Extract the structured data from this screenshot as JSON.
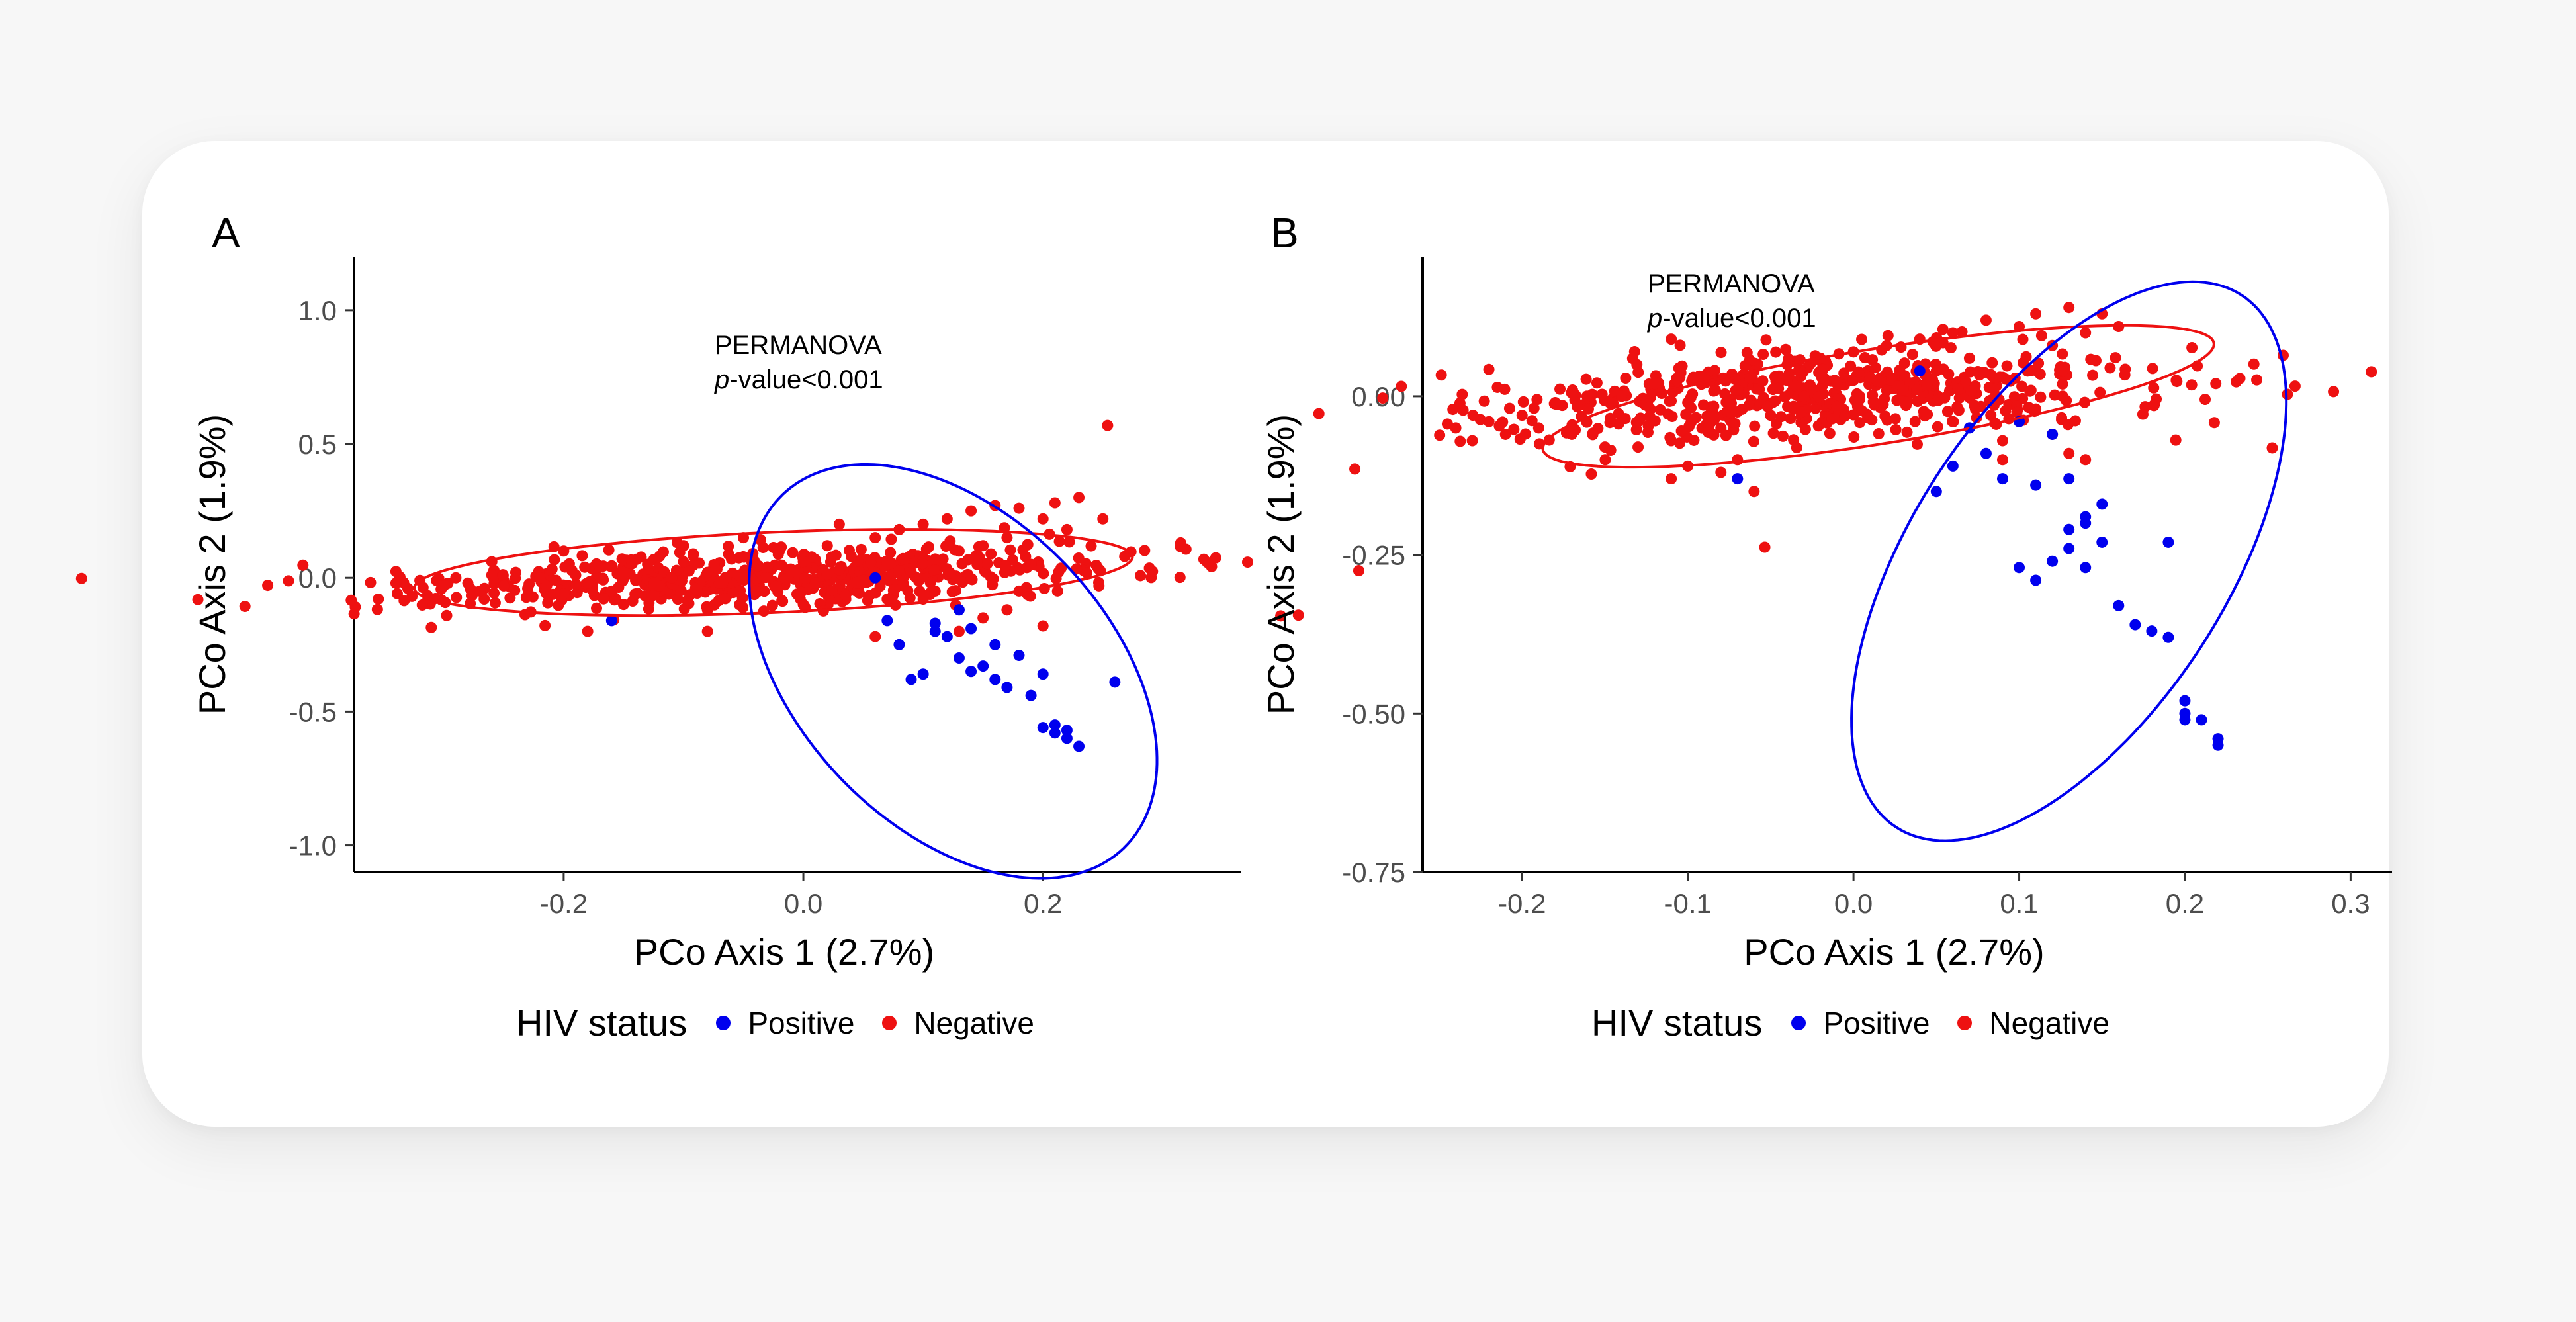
{
  "colors": {
    "positive": "#0000ee",
    "negative": "#ee1111"
  },
  "legend": {
    "title": "HIV status",
    "items": [
      {
        "label": "Positive",
        "color": "#0000ee"
      },
      {
        "label": "Negative",
        "color": "#ee1111"
      }
    ]
  },
  "annotation": {
    "line1": "PERMANOVA",
    "p_italic": "p",
    "p_rest": "-value<0.001"
  },
  "chart_data": [
    {
      "panel": "A",
      "type": "scatter",
      "xlabel": "PCo Axis 1 (2.7%)",
      "ylabel": "PCo Axis 2 (1.9%)",
      "xlim": [
        -0.375,
        0.365
      ],
      "ylim": [
        -1.1,
        1.2
      ],
      "xticks": [
        -0.2,
        0.0,
        0.2
      ],
      "xtick_labels": [
        "-0.2",
        "0.0",
        "0.2"
      ],
      "yticks": [
        -1.0,
        -0.5,
        0.0,
        0.5,
        1.0
      ],
      "ytick_labels": [
        "-1.0",
        "-0.5",
        "0.0",
        "0.5",
        "1.0"
      ],
      "grid": false,
      "series": [
        {
          "name": "Negative",
          "color": "#ee1111",
          "points": [
            [
              -0.34,
              -0.02
            ],
            [
              -0.33,
              -0.04
            ],
            [
              -0.32,
              -0.01
            ],
            [
              -0.3,
              -0.03
            ],
            [
              -0.29,
              0.0
            ],
            [
              -0.28,
              -0.02
            ],
            [
              -0.27,
              -0.05
            ],
            [
              -0.26,
              0.01
            ],
            [
              -0.25,
              -0.03
            ],
            [
              -0.24,
              0.02
            ],
            [
              -0.23,
              -0.04
            ],
            [
              -0.22,
              0.0
            ],
            [
              -0.21,
              0.03
            ],
            [
              -0.2,
              -0.06
            ],
            [
              -0.19,
              0.01
            ],
            [
              -0.18,
              -0.02
            ],
            [
              -0.17,
              0.04
            ],
            [
              -0.16,
              -0.05
            ],
            [
              -0.15,
              0.02
            ],
            [
              -0.14,
              -0.01
            ],
            [
              -0.13,
              0.05
            ],
            [
              -0.12,
              -0.03
            ],
            [
              -0.11,
              0.0
            ],
            [
              -0.1,
              0.06
            ],
            [
              -0.09,
              -0.04
            ],
            [
              -0.08,
              0.02
            ],
            [
              -0.07,
              -0.02
            ],
            [
              -0.06,
              0.07
            ],
            [
              -0.05,
              0.0
            ],
            [
              -0.04,
              -0.05
            ],
            [
              -0.03,
              0.04
            ],
            [
              -0.02,
              0.1
            ],
            [
              -0.01,
              0.02
            ],
            [
              0.0,
              0.06
            ],
            [
              0.01,
              -0.02
            ],
            [
              0.02,
              0.12
            ],
            [
              0.03,
              0.03
            ],
            [
              0.04,
              0.08
            ],
            [
              0.05,
              -0.01
            ],
            [
              0.06,
              0.15
            ],
            [
              0.07,
              0.05
            ],
            [
              0.08,
              0.18
            ],
            [
              0.09,
              0.02
            ],
            [
              0.1,
              0.2
            ],
            [
              0.11,
              0.07
            ],
            [
              0.12,
              0.22
            ],
            [
              0.13,
              0.1
            ],
            [
              0.14,
              0.25
            ],
            [
              0.15,
              0.12
            ],
            [
              0.16,
              0.27
            ],
            [
              0.17,
              0.15
            ],
            [
              0.18,
              0.26
            ],
            [
              0.19,
              0.05
            ],
            [
              0.2,
              0.22
            ],
            [
              0.21,
              0.28
            ],
            [
              0.22,
              0.18
            ],
            [
              0.23,
              0.3
            ],
            [
              0.25,
              0.22
            ],
            [
              -0.2,
              0.1
            ],
            [
              -0.1,
              0.12
            ],
            [
              -0.05,
              0.15
            ],
            [
              0.03,
              0.2
            ],
            [
              -0.15,
              -0.1
            ],
            [
              -0.08,
              -0.12
            ],
            [
              -0.18,
              -0.2
            ],
            [
              -0.08,
              -0.2
            ],
            [
              0.0,
              -0.1
            ],
            [
              0.1,
              -0.08
            ],
            [
              0.15,
              -0.15
            ],
            [
              0.2,
              -0.18
            ],
            [
              0.06,
              -0.22
            ],
            [
              0.17,
              -0.12
            ],
            [
              0.13,
              -0.2
            ],
            [
              0.07,
              -0.08
            ],
            [
              0.18,
              -0.05
            ],
            [
              -0.26,
              0.06
            ],
            [
              -0.12,
              0.08
            ],
            [
              0.11,
              -0.05
            ]
          ],
          "center": [
            -0.03,
            0.0
          ],
          "n": 560,
          "spread": [
            0.14,
            0.055
          ],
          "tilt": 0.45
        },
        {
          "name": "Positive",
          "color": "#0000ee",
          "points": [
            [
              -0.16,
              -0.16
            ],
            [
              0.06,
              0.0
            ],
            [
              0.07,
              -0.16
            ],
            [
              0.08,
              -0.25
            ],
            [
              0.09,
              -0.38
            ],
            [
              0.1,
              -0.36
            ],
            [
              0.11,
              -0.2
            ],
            [
              0.12,
              -0.22
            ],
            [
              0.13,
              -0.3
            ],
            [
              0.14,
              -0.19
            ],
            [
              0.14,
              -0.35
            ],
            [
              0.15,
              -0.33
            ],
            [
              0.16,
              -0.25
            ],
            [
              0.16,
              -0.38
            ],
            [
              0.17,
              -0.41
            ],
            [
              0.18,
              -0.29
            ],
            [
              0.19,
              -0.44
            ],
            [
              0.2,
              -0.36
            ],
            [
              0.2,
              -0.56
            ],
            [
              0.21,
              -0.58
            ],
            [
              0.21,
              -0.55
            ],
            [
              0.22,
              -0.6
            ],
            [
              0.22,
              -0.57
            ],
            [
              0.23,
              -0.63
            ],
            [
              0.26,
              -0.39
            ],
            [
              0.13,
              -0.12
            ],
            [
              0.11,
              -0.17
            ]
          ]
        }
      ],
      "ellipses": [
        {
          "group": "Negative",
          "color": "#ee1111",
          "center": [
            -0.025,
            0.02
          ],
          "rx": 0.3,
          "ry": 0.15,
          "angle_deg": 2.5
        },
        {
          "group": "Positive",
          "color": "#0000ee",
          "center": [
            0.125,
            -0.35
          ],
          "rx": 0.205,
          "ry": 0.58,
          "angle_deg": -46
        }
      ]
    },
    {
      "panel": "B",
      "type": "scatter",
      "xlabel": "PCo Axis 1 (2.7%)",
      "ylabel": "PCo Axis 2 (1.9%)",
      "xlim": [
        -0.26,
        0.325
      ],
      "ylim": [
        -0.75,
        0.22
      ],
      "xticks": [
        -0.2,
        -0.1,
        0.0,
        0.1,
        0.2,
        0.3
      ],
      "xtick_labels": [
        "-0.2",
        "-0.1",
        "0.0",
        "0.1",
        "0.2",
        "0.3"
      ],
      "yticks": [
        -0.75,
        -0.5,
        -0.25,
        0.0
      ],
      "ytick_labels": [
        "-0.75",
        "-0.50",
        "-0.25",
        "0.00"
      ],
      "grid": false,
      "series": [
        {
          "name": "Negative",
          "color": "#ee1111",
          "points": [
            [
              -0.24,
              -0.05
            ],
            [
              -0.23,
              -0.07
            ],
            [
              -0.22,
              -0.04
            ],
            [
              -0.21,
              -0.06
            ],
            [
              -0.2,
              -0.03
            ],
            [
              -0.19,
              -0.05
            ],
            [
              -0.18,
              -0.01
            ],
            [
              -0.17,
              -0.06
            ],
            [
              -0.16,
              -0.02
            ],
            [
              -0.15,
              -0.08
            ],
            [
              -0.14,
              0.0
            ],
            [
              -0.13,
              -0.04
            ],
            [
              -0.12,
              0.02
            ],
            [
              -0.11,
              -0.07
            ],
            [
              -0.1,
              -0.01
            ],
            [
              -0.09,
              0.03
            ],
            [
              -0.08,
              -0.05
            ],
            [
              -0.07,
              0.01
            ],
            [
              -0.06,
              0.04
            ],
            [
              -0.05,
              -0.03
            ],
            [
              -0.04,
              0.05
            ],
            [
              -0.03,
              0.0
            ],
            [
              -0.02,
              0.06
            ],
            [
              -0.01,
              0.02
            ],
            [
              0.0,
              0.07
            ],
            [
              0.01,
              0.03
            ],
            [
              0.02,
              0.08
            ],
            [
              0.03,
              0.01
            ],
            [
              0.04,
              0.09
            ],
            [
              0.05,
              0.04
            ],
            [
              0.06,
              0.1
            ],
            [
              0.07,
              0.06
            ],
            [
              0.08,
              0.12
            ],
            [
              0.09,
              0.03
            ],
            [
              0.1,
              0.11
            ],
            [
              0.11,
              0.13
            ],
            [
              0.12,
              0.08
            ],
            [
              0.13,
              0.14
            ],
            [
              0.14,
              0.1
            ],
            [
              0.15,
              0.13
            ],
            [
              0.16,
              0.11
            ],
            [
              -0.11,
              0.09
            ],
            [
              -0.08,
              -0.12
            ],
            [
              -0.11,
              -0.13
            ],
            [
              -0.06,
              -0.15
            ],
            [
              -0.07,
              -0.1
            ],
            [
              -0.1,
              -0.11
            ],
            [
              0.09,
              -0.07
            ],
            [
              0.1,
              -0.04
            ],
            [
              0.12,
              -0.06
            ],
            [
              0.13,
              -0.09
            ],
            [
              0.14,
              -0.1
            ],
            [
              0.09,
              -0.1
            ],
            [
              0.11,
              -0.02
            ],
            [
              -0.13,
              -0.08
            ]
          ],
          "center": [
            -0.02,
            0.0
          ],
          "n": 560,
          "spread": [
            0.09,
            0.035
          ],
          "tilt": 0.35
        },
        {
          "name": "Positive",
          "color": "#0000ee",
          "points": [
            [
              -0.07,
              -0.13
            ],
            [
              0.04,
              0.04
            ],
            [
              0.05,
              -0.15
            ],
            [
              0.06,
              -0.11
            ],
            [
              0.07,
              -0.05
            ],
            [
              0.08,
              -0.09
            ],
            [
              0.09,
              -0.13
            ],
            [
              0.1,
              -0.04
            ],
            [
              0.1,
              -0.27
            ],
            [
              0.11,
              -0.29
            ],
            [
              0.12,
              -0.06
            ],
            [
              0.12,
              -0.26
            ],
            [
              0.13,
              -0.21
            ],
            [
              0.13,
              -0.24
            ],
            [
              0.14,
              -0.2
            ],
            [
              0.14,
              -0.19
            ],
            [
              0.14,
              -0.27
            ],
            [
              0.15,
              -0.17
            ],
            [
              0.15,
              -0.23
            ],
            [
              0.16,
              -0.33
            ],
            [
              0.17,
              -0.36
            ],
            [
              0.18,
              -0.37
            ],
            [
              0.19,
              -0.38
            ],
            [
              0.19,
              -0.23
            ],
            [
              0.2,
              -0.48
            ],
            [
              0.2,
              -0.5
            ],
            [
              0.2,
              -0.51
            ],
            [
              0.21,
              -0.51
            ],
            [
              0.22,
              -0.54
            ],
            [
              0.22,
              -0.55
            ],
            [
              0.13,
              -0.13
            ],
            [
              0.11,
              -0.14
            ]
          ]
        }
      ],
      "ellipses": [
        {
          "group": "Negative",
          "color": "#ee1111",
          "center": [
            0.015,
            0.0
          ],
          "rx": 0.205,
          "ry": 0.075,
          "angle_deg": 9
        },
        {
          "group": "Positive",
          "color": "#0000ee",
          "center": [
            0.13,
            -0.26
          ],
          "rx": 0.095,
          "ry": 0.5,
          "angle_deg": -33
        }
      ]
    }
  ]
}
